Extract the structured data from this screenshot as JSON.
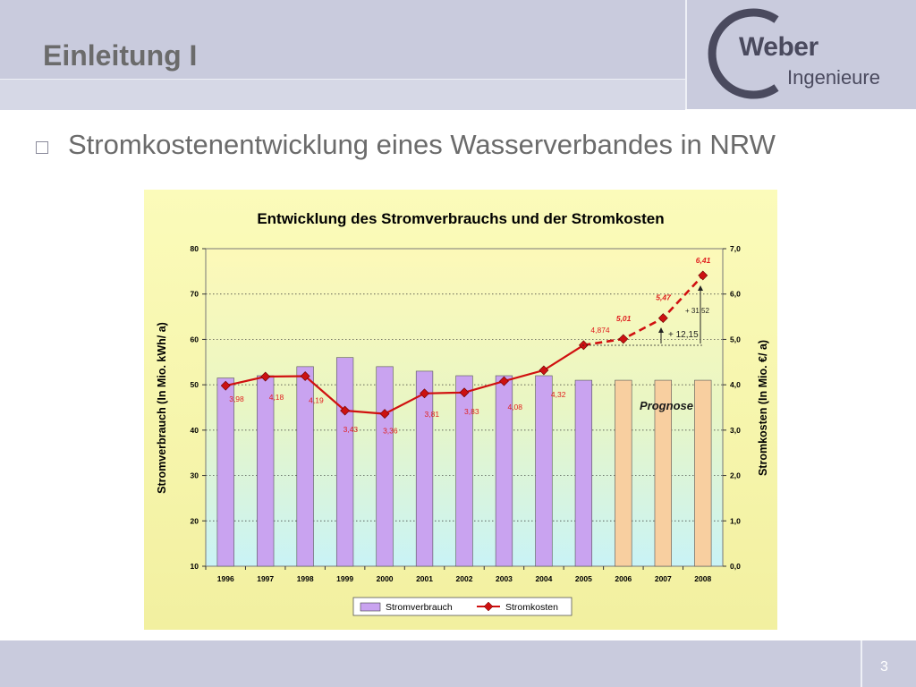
{
  "slide": {
    "title": "Einleitung I",
    "subtitle": "Stromkostenentwicklung eines Wasserverbandes in NRW",
    "page_number": "3"
  },
  "logo": {
    "word": "Weber",
    "sub": "Ingenieure"
  },
  "colors": {
    "header": "#c9cbdd",
    "bar_actual": "#c9a3f0",
    "bar_forecast": "#f8cfa0",
    "line": "#d01010",
    "marker": "#cc1111",
    "label_red": "#e02020"
  },
  "chart_data": {
    "type": "bar",
    "title": "Entwicklung des Stromverbrauchs und der Stromkosten",
    "ylabel": "Stromverbrauch (In Mio. kWh/ a)",
    "y2label": "Stromkosten (In Mio. €/ a)",
    "ylim": [
      10,
      80
    ],
    "y_ticks": [
      "10",
      "20",
      "30",
      "40",
      "50",
      "60",
      "70",
      "80"
    ],
    "y2lim": [
      0,
      7
    ],
    "y2_ticks": [
      "0,0",
      "1,0",
      "2,0",
      "3,0",
      "4,0",
      "5,0",
      "6,0",
      "7,0"
    ],
    "categories": [
      "1996",
      "1997",
      "1998",
      "1999",
      "2000",
      "2001",
      "2002",
      "2003",
      "2004",
      "2005",
      "2006",
      "2007",
      "2008"
    ],
    "series": [
      {
        "name": "Stromverbrauch",
        "axis": "left",
        "values": [
          51.5,
          52,
          54,
          56,
          54,
          53,
          52,
          52,
          52,
          51,
          51,
          51,
          51
        ],
        "forecast_from_index": 10
      },
      {
        "name": "Stromkosten",
        "axis": "right",
        "type": "line",
        "values": [
          3.98,
          4.18,
          4.19,
          3.43,
          3.36,
          3.81,
          3.83,
          4.08,
          4.32,
          4.874,
          5.01,
          5.47,
          6.41
        ],
        "labels": [
          "3,98",
          "4,18",
          "4,19",
          "3,43",
          "3,36",
          "3,81",
          "3,83",
          "4,08",
          "4,32",
          "4,874",
          "5,01",
          "5,47",
          "6,41"
        ],
        "dashed_from_index": 9
      }
    ],
    "annotations": {
      "forecast": "Prognose",
      "increase_small": "+ 12,15",
      "increase_large": "+ 31,52"
    },
    "grid": true,
    "legend_position": "bottom"
  }
}
